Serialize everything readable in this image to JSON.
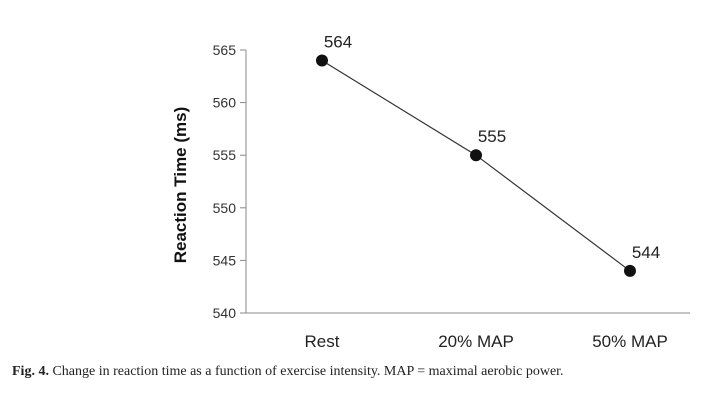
{
  "chart_data": {
    "type": "line",
    "categories": [
      "Rest",
      "20% MAP",
      "50% MAP"
    ],
    "values": [
      564,
      555,
      544
    ],
    "data_labels": [
      "564",
      "555",
      "544"
    ],
    "ylabel": "Reaction Time (ms)",
    "xlabel": "",
    "ylim": [
      540,
      565
    ],
    "yticks": [
      540,
      545,
      550,
      555,
      560,
      565
    ],
    "grid": false,
    "colors": {
      "line": "#333333",
      "marker": "#111111",
      "axis": "#888888"
    }
  },
  "caption": {
    "figure_label": "Fig. 4.",
    "text": "Change in reaction time as a function of exercise intensity. MAP = maximal aerobic power."
  }
}
